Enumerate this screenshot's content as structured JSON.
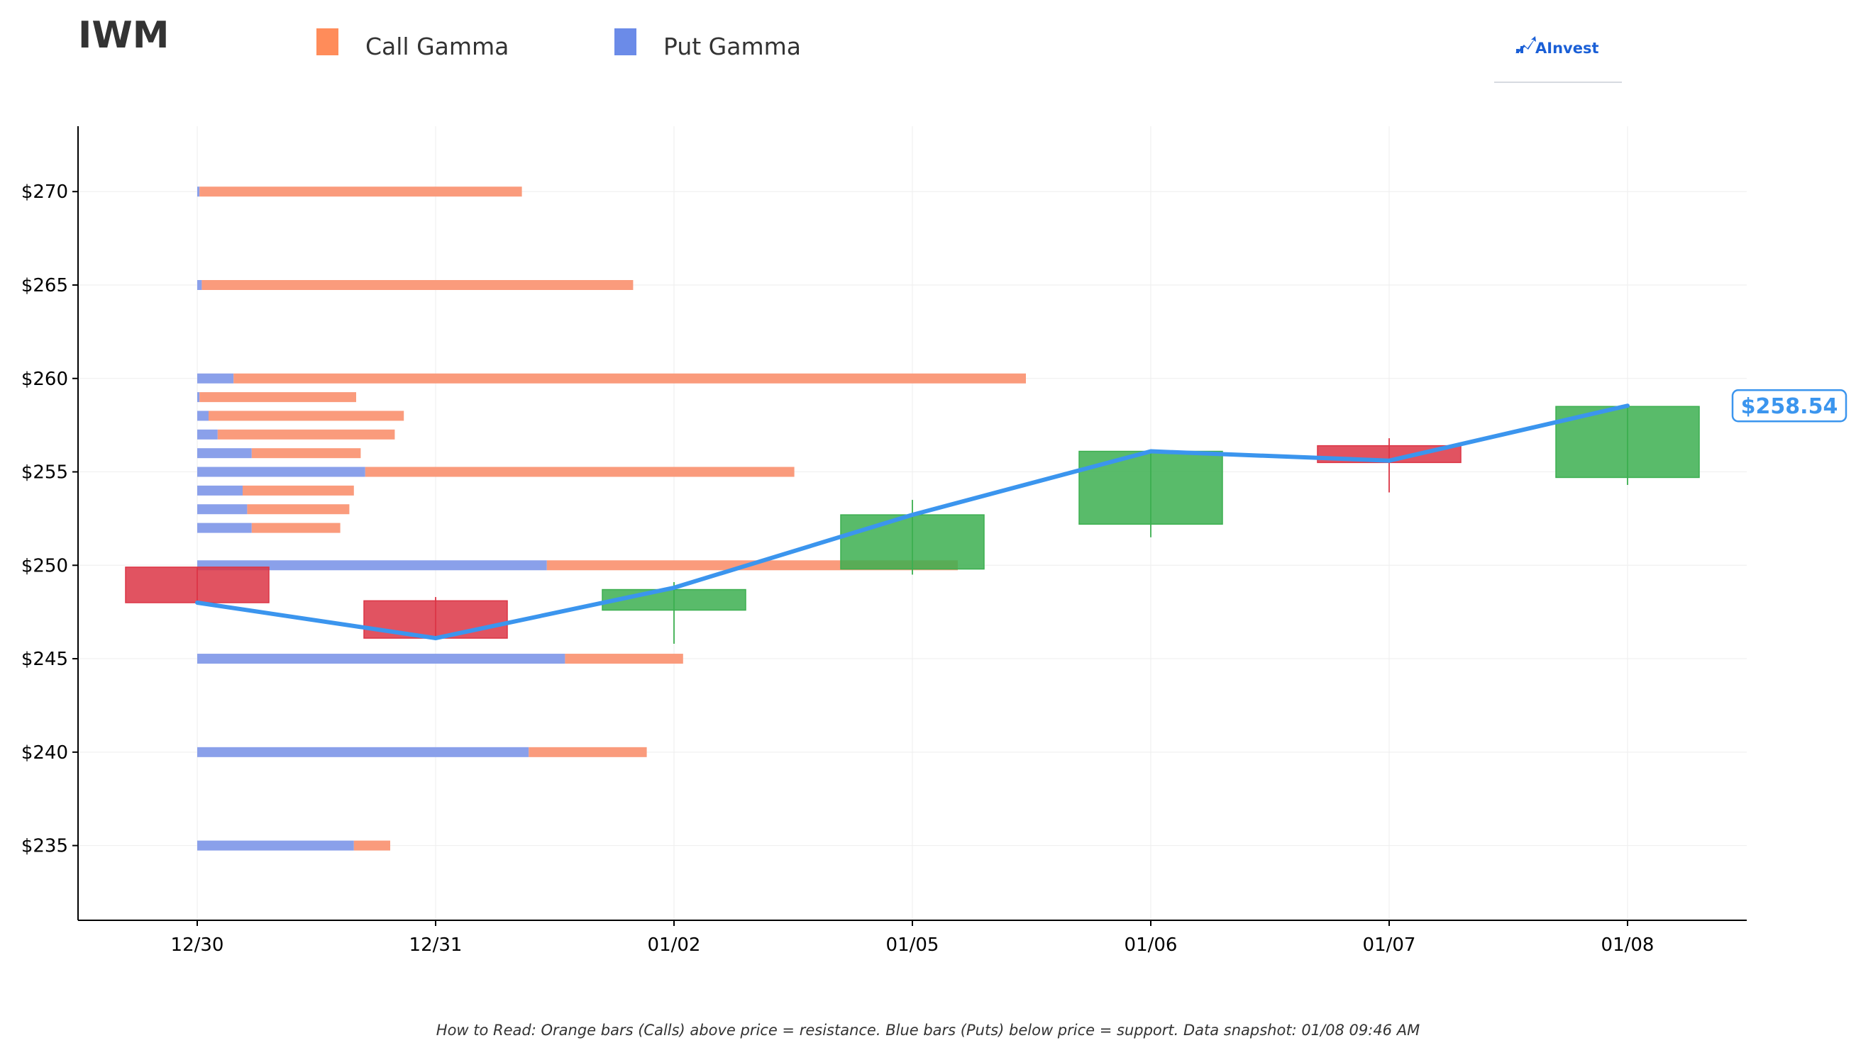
{
  "chart_data": {
    "type": "candlestick",
    "title": "IWM",
    "legend": [
      {
        "label": "Call Gamma",
        "color": "#FF8C5A"
      },
      {
        "label": "Put Gamma",
        "color": "#6B8BE8"
      }
    ],
    "legend_placement": "top",
    "ylim": [
      231,
      273.5
    ],
    "y_ticks": [
      235,
      240,
      245,
      250,
      255,
      260,
      265,
      270
    ],
    "y_tick_labels": [
      "$235",
      "$240",
      "$245",
      "$250",
      "$255",
      "$260",
      "$265",
      "$270"
    ],
    "categories": [
      "12/30",
      "12/31",
      "01/02",
      "01/05",
      "01/06",
      "01/07",
      "01/08"
    ],
    "candles": [
      {
        "date": "12/30",
        "open": 249.9,
        "close": 248.0,
        "high": 249.9,
        "low": 248.0
      },
      {
        "date": "12/31",
        "open": 248.1,
        "close": 246.1,
        "high": 248.3,
        "low": 246.0
      },
      {
        "date": "01/02",
        "open": 247.6,
        "close": 248.7,
        "high": 249.1,
        "low": 245.8
      },
      {
        "date": "01/05",
        "open": 249.8,
        "close": 252.7,
        "high": 253.5,
        "low": 249.5
      },
      {
        "date": "01/06",
        "open": 252.2,
        "close": 256.1,
        "high": 256.1,
        "low": 251.5
      },
      {
        "date": "01/07",
        "open": 256.4,
        "close": 255.5,
        "high": 256.8,
        "low": 253.9
      },
      {
        "date": "01/08",
        "open": 254.7,
        "close": 258.5,
        "high": 258.5,
        "low": 254.3
      }
    ],
    "price_line": {
      "color": "#3B95EE",
      "values": [
        248.0,
        246.1,
        248.8,
        252.7,
        256.1,
        255.6,
        258.54
      ]
    },
    "last_price_label": "$258.54",
    "gamma_bars": [
      {
        "strike": 270,
        "put": 0.01,
        "call": 1.42
      },
      {
        "strike": 265,
        "put": 0.02,
        "call": 1.9
      },
      {
        "strike": 260,
        "put": 0.16,
        "call": 3.49
      },
      {
        "strike": 259,
        "put": 0.01,
        "call": 0.69
      },
      {
        "strike": 258,
        "put": 0.05,
        "call": 0.86
      },
      {
        "strike": 257,
        "put": 0.09,
        "call": 0.78
      },
      {
        "strike": 256,
        "put": 0.24,
        "call": 0.48
      },
      {
        "strike": 255,
        "put": 0.74,
        "call": 1.89
      },
      {
        "strike": 254,
        "put": 0.2,
        "call": 0.49
      },
      {
        "strike": 253,
        "put": 0.22,
        "call": 0.45
      },
      {
        "strike": 252,
        "put": 0.24,
        "call": 0.39
      },
      {
        "strike": 250,
        "put": 1.54,
        "call": 1.81
      },
      {
        "strike": 245,
        "put": 1.62,
        "call": 0.52
      },
      {
        "strike": 240,
        "put": 1.46,
        "call": 0.52
      },
      {
        "strike": 235,
        "put": 0.69,
        "call": 0.16
      }
    ],
    "colors": {
      "up": "#3CAF50",
      "down": "#DC3545",
      "call": "#FA9B7C",
      "put": "#8AA0EA",
      "axis": "#000000",
      "grid": "#EEEEEE",
      "text": "#333333"
    },
    "grid": true
  },
  "brand": {
    "logo_text": "AInvest"
  },
  "footnote": "How to Read: Orange bars (Calls) above price = resistance. Blue bars (Puts) below price = support. Data snapshot: 01/08 09:46 AM"
}
